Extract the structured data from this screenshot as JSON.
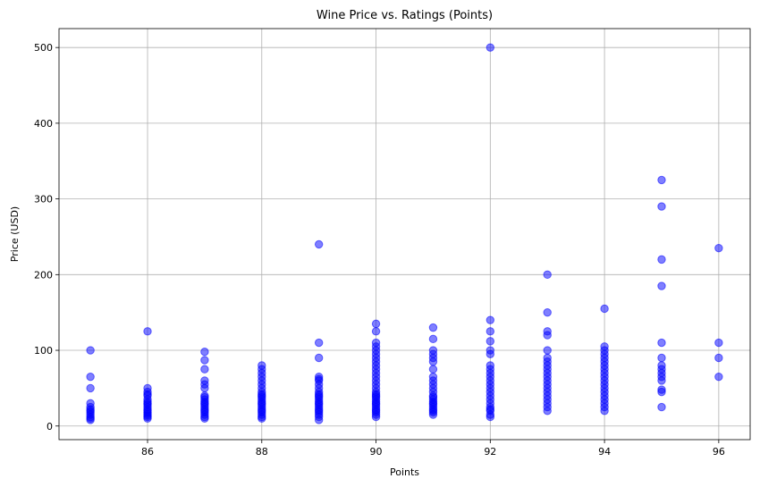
{
  "chart_data": {
    "type": "scatter",
    "title": "Wine Price vs. Ratings (Points)",
    "xlabel": "Points",
    "ylabel": "Price (USD)",
    "xlim": [
      84.45,
      96.55
    ],
    "ylim": [
      -18,
      525
    ],
    "xticks": [
      86,
      88,
      90,
      92,
      94,
      96
    ],
    "yticks": [
      0,
      100,
      200,
      300,
      400,
      500
    ],
    "grid": true,
    "color": "#0000ff",
    "alpha": 0.5,
    "series": [
      {
        "points": [
          [
            85,
            100
          ],
          [
            85,
            65
          ],
          [
            85,
            50
          ],
          [
            85,
            30
          ],
          [
            85,
            25
          ],
          [
            85,
            22
          ],
          [
            85,
            20
          ],
          [
            85,
            18
          ],
          [
            85,
            15
          ],
          [
            85,
            12
          ],
          [
            85,
            10
          ],
          [
            85,
            8
          ],
          [
            86,
            125
          ],
          [
            86,
            50
          ],
          [
            86,
            45
          ],
          [
            86,
            42
          ],
          [
            86,
            40
          ],
          [
            86,
            35
          ],
          [
            86,
            32
          ],
          [
            86,
            30
          ],
          [
            86,
            28
          ],
          [
            86,
            25
          ],
          [
            86,
            22
          ],
          [
            86,
            20
          ],
          [
            86,
            18
          ],
          [
            86,
            16
          ],
          [
            86,
            14
          ],
          [
            86,
            12
          ],
          [
            86,
            10
          ],
          [
            87,
            98
          ],
          [
            87,
            87
          ],
          [
            87,
            75
          ],
          [
            87,
            60
          ],
          [
            87,
            55
          ],
          [
            87,
            50
          ],
          [
            87,
            40
          ],
          [
            87,
            38
          ],
          [
            87,
            35
          ],
          [
            87,
            32
          ],
          [
            87,
            30
          ],
          [
            87,
            28
          ],
          [
            87,
            25
          ],
          [
            87,
            22
          ],
          [
            87,
            20
          ],
          [
            87,
            18
          ],
          [
            87,
            15
          ],
          [
            87,
            12
          ],
          [
            87,
            10
          ],
          [
            88,
            80
          ],
          [
            88,
            75
          ],
          [
            88,
            70
          ],
          [
            88,
            65
          ],
          [
            88,
            60
          ],
          [
            88,
            55
          ],
          [
            88,
            50
          ],
          [
            88,
            45
          ],
          [
            88,
            42
          ],
          [
            88,
            40
          ],
          [
            88,
            38
          ],
          [
            88,
            35
          ],
          [
            88,
            32
          ],
          [
            88,
            30
          ],
          [
            88,
            28
          ],
          [
            88,
            25
          ],
          [
            88,
            22
          ],
          [
            88,
            20
          ],
          [
            88,
            18
          ],
          [
            88,
            15
          ],
          [
            88,
            12
          ],
          [
            88,
            10
          ],
          [
            89,
            240
          ],
          [
            89,
            110
          ],
          [
            89,
            90
          ],
          [
            89,
            65
          ],
          [
            89,
            62
          ],
          [
            89,
            60
          ],
          [
            89,
            55
          ],
          [
            89,
            50
          ],
          [
            89,
            45
          ],
          [
            89,
            42
          ],
          [
            89,
            40
          ],
          [
            89,
            38
          ],
          [
            89,
            35
          ],
          [
            89,
            32
          ],
          [
            89,
            30
          ],
          [
            89,
            28
          ],
          [
            89,
            25
          ],
          [
            89,
            22
          ],
          [
            89,
            20
          ],
          [
            89,
            18
          ],
          [
            89,
            15
          ],
          [
            89,
            12
          ],
          [
            89,
            8
          ],
          [
            90,
            135
          ],
          [
            90,
            125
          ],
          [
            90,
            110
          ],
          [
            90,
            105
          ],
          [
            90,
            100
          ],
          [
            90,
            95
          ],
          [
            90,
            90
          ],
          [
            90,
            85
          ],
          [
            90,
            80
          ],
          [
            90,
            75
          ],
          [
            90,
            70
          ],
          [
            90,
            65
          ],
          [
            90,
            60
          ],
          [
            90,
            55
          ],
          [
            90,
            50
          ],
          [
            90,
            45
          ],
          [
            90,
            42
          ],
          [
            90,
            40
          ],
          [
            90,
            38
          ],
          [
            90,
            35
          ],
          [
            90,
            32
          ],
          [
            90,
            30
          ],
          [
            90,
            28
          ],
          [
            90,
            25
          ],
          [
            90,
            22
          ],
          [
            90,
            20
          ],
          [
            90,
            18
          ],
          [
            90,
            15
          ],
          [
            90,
            12
          ],
          [
            91,
            130
          ],
          [
            91,
            115
          ],
          [
            91,
            100
          ],
          [
            91,
            95
          ],
          [
            91,
            90
          ],
          [
            91,
            85
          ],
          [
            91,
            75
          ],
          [
            91,
            65
          ],
          [
            91,
            60
          ],
          [
            91,
            55
          ],
          [
            91,
            50
          ],
          [
            91,
            45
          ],
          [
            91,
            40
          ],
          [
            91,
            38
          ],
          [
            91,
            35
          ],
          [
            91,
            32
          ],
          [
            91,
            30
          ],
          [
            91,
            28
          ],
          [
            91,
            25
          ],
          [
            91,
            22
          ],
          [
            91,
            20
          ],
          [
            91,
            18
          ],
          [
            91,
            15
          ],
          [
            92,
            500
          ],
          [
            92,
            140
          ],
          [
            92,
            125
          ],
          [
            92,
            112
          ],
          [
            92,
            100
          ],
          [
            92,
            95
          ],
          [
            92,
            80
          ],
          [
            92,
            75
          ],
          [
            92,
            70
          ],
          [
            92,
            65
          ],
          [
            92,
            60
          ],
          [
            92,
            55
          ],
          [
            92,
            50
          ],
          [
            92,
            45
          ],
          [
            92,
            40
          ],
          [
            92,
            35
          ],
          [
            92,
            30
          ],
          [
            92,
            25
          ],
          [
            92,
            22
          ],
          [
            92,
            20
          ],
          [
            92,
            15
          ],
          [
            92,
            12
          ],
          [
            93,
            200
          ],
          [
            93,
            150
          ],
          [
            93,
            125
          ],
          [
            93,
            120
          ],
          [
            93,
            100
          ],
          [
            93,
            90
          ],
          [
            93,
            85
          ],
          [
            93,
            80
          ],
          [
            93,
            75
          ],
          [
            93,
            70
          ],
          [
            93,
            65
          ],
          [
            93,
            60
          ],
          [
            93,
            55
          ],
          [
            93,
            50
          ],
          [
            93,
            45
          ],
          [
            93,
            40
          ],
          [
            93,
            35
          ],
          [
            93,
            30
          ],
          [
            93,
            25
          ],
          [
            93,
            20
          ],
          [
            94,
            155
          ],
          [
            94,
            105
          ],
          [
            94,
            100
          ],
          [
            94,
            95
          ],
          [
            94,
            90
          ],
          [
            94,
            85
          ],
          [
            94,
            80
          ],
          [
            94,
            75
          ],
          [
            94,
            70
          ],
          [
            94,
            65
          ],
          [
            94,
            60
          ],
          [
            94,
            55
          ],
          [
            94,
            50
          ],
          [
            94,
            45
          ],
          [
            94,
            40
          ],
          [
            94,
            35
          ],
          [
            94,
            30
          ],
          [
            94,
            25
          ],
          [
            94,
            20
          ],
          [
            95,
            325
          ],
          [
            95,
            290
          ],
          [
            95,
            220
          ],
          [
            95,
            185
          ],
          [
            95,
            110
          ],
          [
            95,
            90
          ],
          [
            95,
            80
          ],
          [
            95,
            75
          ],
          [
            95,
            70
          ],
          [
            95,
            65
          ],
          [
            95,
            60
          ],
          [
            95,
            48
          ],
          [
            95,
            45
          ],
          [
            95,
            25
          ],
          [
            96,
            235
          ],
          [
            96,
            110
          ],
          [
            96,
            90
          ],
          [
            96,
            65
          ]
        ]
      }
    ]
  }
}
